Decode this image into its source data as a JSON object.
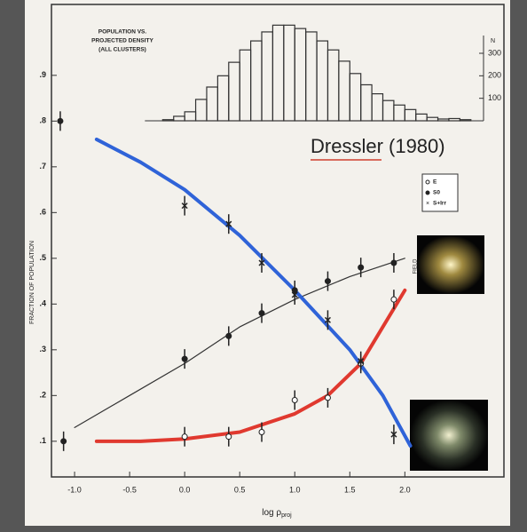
{
  "chart_data": [
    {
      "type": "line",
      "ylabel": "FRACTION OF POPULATION",
      "xlabel": "log ρ",
      "xlabel_sub": "proj",
      "annotation": "Dressler (1980)",
      "field_label": "FIELD",
      "xlim": [
        -1.21,
        2.9
      ],
      "ylim": [
        0.022,
        1.055
      ],
      "xticks": [
        {
          "value": -1,
          "label": "-1.0"
        },
        -0.5,
        {
          "value": 0,
          "label": "0.0"
        },
        0.5,
        {
          "value": 1,
          "label": "1.0"
        },
        1.5,
        {
          "value": 2,
          "label": "2.0"
        }
      ],
      "yticks": [
        {
          "value": 0.1,
          "label": ".1"
        },
        {
          "value": 0.2,
          "label": ".2"
        },
        {
          "value": 0.3,
          "label": ".3"
        },
        {
          "value": 0.4,
          "label": ".4"
        },
        {
          "value": 0.5,
          "label": ".5"
        },
        {
          "value": 0.6,
          "label": ".6"
        },
        {
          "value": 0.7,
          "label": ".7"
        },
        {
          "value": 0.8,
          "label": ".8"
        },
        {
          "value": 0.9,
          "label": ".9"
        }
      ],
      "legend": "upper right",
      "x": [
        0,
        0.4,
        0.7,
        1.0,
        1.3,
        1.6,
        1.9
      ],
      "series": [
        {
          "name": "E",
          "marker": "open",
          "color": "#e0392f",
          "values": [
            0.11,
            0.11,
            0.12,
            0.19,
            0.195,
            0.27,
            0.41
          ],
          "curve_x": [
            -0.8,
            -0.4,
            0,
            0.5,
            1,
            1.3,
            1.6,
            2.0
          ],
          "curve": [
            0.1,
            0.1,
            0.105,
            0.12,
            0.16,
            0.2,
            0.27,
            0.43
          ]
        },
        {
          "name": "S0",
          "marker": "filled",
          "color": "#333333",
          "values": [
            0.28,
            0.33,
            0.38,
            0.43,
            0.45,
            0.48,
            0.49
          ],
          "curve_x": [
            -1.0,
            -0.5,
            0,
            0.5,
            1,
            1.5,
            2.0
          ],
          "curve": [
            0.13,
            0.2,
            0.27,
            0.35,
            0.41,
            0.46,
            0.5
          ]
        },
        {
          "name": "S+Irr",
          "marker": "cross",
          "color": "#2f63d8",
          "values": [
            0.615,
            0.575,
            0.49,
            0.42,
            0.365,
            0.275,
            0.115
          ],
          "curve_x": [
            -0.8,
            -0.4,
            0,
            0.5,
            1.0,
            1.5,
            1.8,
            2.05
          ],
          "curve": [
            0.76,
            0.71,
            0.65,
            0.55,
            0.43,
            0.3,
            0.2,
            0.09
          ]
        }
      ],
      "field_points": {
        "x": [
          -1.13,
          -1.1
        ],
        "values": [
          0.8,
          0.1
        ]
      }
    },
    {
      "type": "histogram",
      "title": [
        "POPULATION VS.",
        "PROJECTED DENSITY",
        "(ALL CLUSTERS)"
      ],
      "ylabel": "N",
      "ylim": [
        0,
        450
      ],
      "yticks": [
        100,
        200,
        300
      ],
      "bins": [
        -0.2,
        -0.1,
        0,
        0.1,
        0.2,
        0.3,
        0.4,
        0.5,
        0.6,
        0.7,
        0.8,
        0.9,
        1.0,
        1.1,
        1.2,
        1.3,
        1.4,
        1.5,
        1.6,
        1.7,
        1.8,
        1.9,
        2.0,
        2.1,
        2.2,
        2.3,
        2.4,
        2.5,
        2.6
      ],
      "values": [
        5,
        20,
        40,
        95,
        150,
        200,
        260,
        315,
        355,
        395,
        425,
        425,
        410,
        395,
        355,
        315,
        265,
        210,
        160,
        120,
        90,
        70,
        50,
        30,
        15,
        8,
        10,
        5
      ]
    }
  ]
}
